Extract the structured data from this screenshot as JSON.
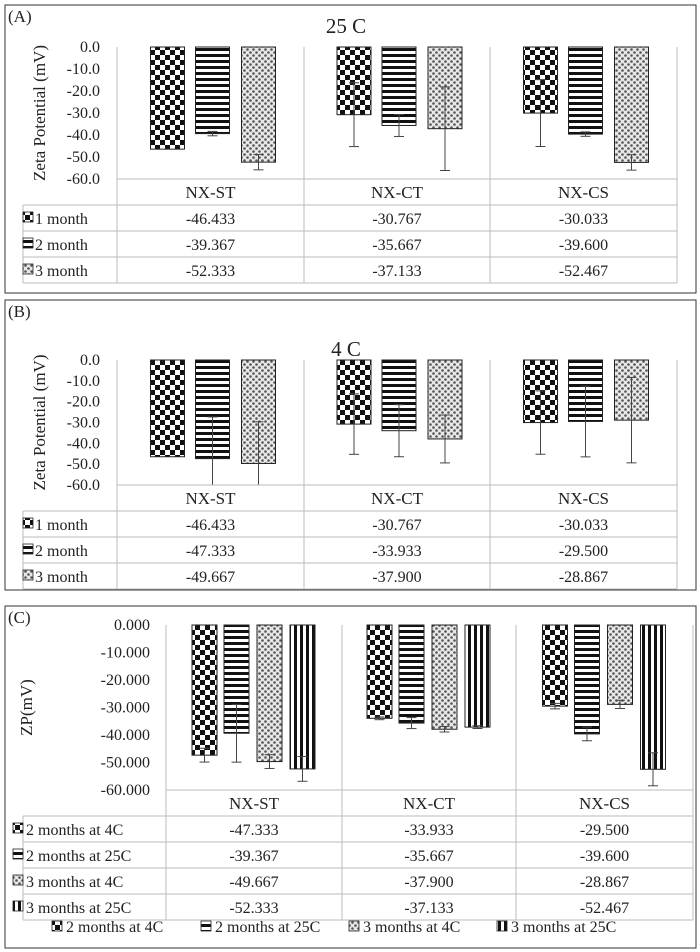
{
  "chart_data": [
    {
      "panel_label": "(A)",
      "type": "bar",
      "title": "25 C",
      "ylabel": "Zeta Potential (mV)",
      "xlabel": "",
      "ylim": [
        -60,
        0
      ],
      "yticks": [
        0,
        -10,
        -20,
        -30,
        -40,
        -50,
        -60
      ],
      "ytick_labels": [
        "0.0",
        "-10.0",
        "-20.0",
        "-30.0",
        "-40.0",
        "-50.0",
        "-60.0"
      ],
      "categories": [
        "NX-ST",
        "NX-CT",
        "NX-CS"
      ],
      "series": [
        {
          "name": "1 month",
          "values": [
            -46.433,
            -30.767,
            -30.033
          ],
          "value_labels": [
            "-46.433",
            "-30.767",
            "-30.033"
          ],
          "errors": [
            0,
            14.5,
            15.2
          ],
          "pattern": "checker"
        },
        {
          "name": "2 month",
          "values": [
            -39.367,
            -35.667,
            -39.6
          ],
          "value_labels": [
            "-39.367",
            "-35.667",
            "-39.600"
          ],
          "errors": [
            1.0,
            5.0,
            1.0
          ],
          "pattern": "hstripe"
        },
        {
          "name": "3 month",
          "values": [
            -52.333,
            -37.133,
            -52.467
          ],
          "value_labels": [
            "-52.333",
            "-37.133",
            "-52.467"
          ],
          "errors": [
            3.5,
            19.0,
            3.5
          ],
          "pattern": "dots"
        }
      ],
      "data_table": true,
      "grid": false
    },
    {
      "panel_label": "(B)",
      "type": "bar",
      "title": "4 C",
      "ylabel": "Zeta Potential (mV)",
      "xlabel": "",
      "ylim": [
        -60,
        0
      ],
      "yticks": [
        0,
        -10,
        -20,
        -30,
        -40,
        -50,
        -60
      ],
      "ytick_labels": [
        "0.0",
        "-10.0",
        "-20.0",
        "-30.0",
        "-40.0",
        "-50.0",
        "-60.0"
      ],
      "categories": [
        "NX-ST",
        "NX-CT",
        "NX-CS"
      ],
      "series": [
        {
          "name": "1 month",
          "values": [
            -46.433,
            -30.767,
            -30.033
          ],
          "value_labels": [
            "-46.433",
            "-30.767",
            "-30.033"
          ],
          "errors": [
            0,
            14.5,
            15.2
          ],
          "pattern": "checker"
        },
        {
          "name": "2 month",
          "values": [
            -47.333,
            -33.933,
            -29.5
          ],
          "value_labels": [
            "-47.333",
            "-33.933",
            "-29.500"
          ],
          "errors": [
            20.0,
            12.5,
            17.0
          ],
          "pattern": "hstripe"
        },
        {
          "name": "3 month",
          "values": [
            -49.667,
            -37.9,
            -28.867
          ],
          "value_labels": [
            "-49.667",
            "-37.900",
            "-28.867"
          ],
          "errors": [
            20.0,
            11.5,
            20.5
          ],
          "pattern": "dots"
        }
      ],
      "data_table": true,
      "grid": false
    },
    {
      "panel_label": "(C)",
      "type": "bar",
      "title": "",
      "ylabel": "ZP(mV)",
      "xlabel": "",
      "ylim": [
        -60,
        0
      ],
      "yticks": [
        0,
        -10,
        -20,
        -30,
        -40,
        -50,
        -60
      ],
      "ytick_labels": [
        "0.000",
        "-10.000",
        "-20.000",
        "-30.000",
        "-40.000",
        "-50.000",
        "-60.000"
      ],
      "categories": [
        "NX-ST",
        "NX-CT",
        "NX-CS"
      ],
      "series": [
        {
          "name": "2 months at 4C",
          "values": [
            -47.333,
            -33.933,
            -29.5
          ],
          "value_labels": [
            "-47.333",
            "-33.933",
            "-29.500"
          ],
          "errors": [
            2.5,
            0.5,
            1.0
          ],
          "pattern": "checker"
        },
        {
          "name": "2 months at 25C",
          "values": [
            -39.367,
            -35.667,
            -39.6
          ],
          "value_labels": [
            "-39.367",
            "-35.667",
            "-39.600"
          ],
          "errors": [
            10.5,
            2.0,
            2.5
          ],
          "pattern": "hstripe"
        },
        {
          "name": "3 months at 4C",
          "values": [
            -49.667,
            -37.9,
            -28.867
          ],
          "value_labels": [
            "-49.667",
            "-37.900",
            "-28.867"
          ],
          "errors": [
            2.5,
            1.0,
            1.5
          ],
          "pattern": "dots"
        },
        {
          "name": "3 months at 25C",
          "values": [
            -52.333,
            -37.133,
            -52.467
          ],
          "value_labels": [
            "-52.333",
            "-37.133",
            "-52.467"
          ],
          "errors": [
            4.5,
            0.5,
            6.0
          ],
          "pattern": "vstripe"
        }
      ],
      "data_table": true,
      "legend": "bottom",
      "grid": false
    }
  ]
}
